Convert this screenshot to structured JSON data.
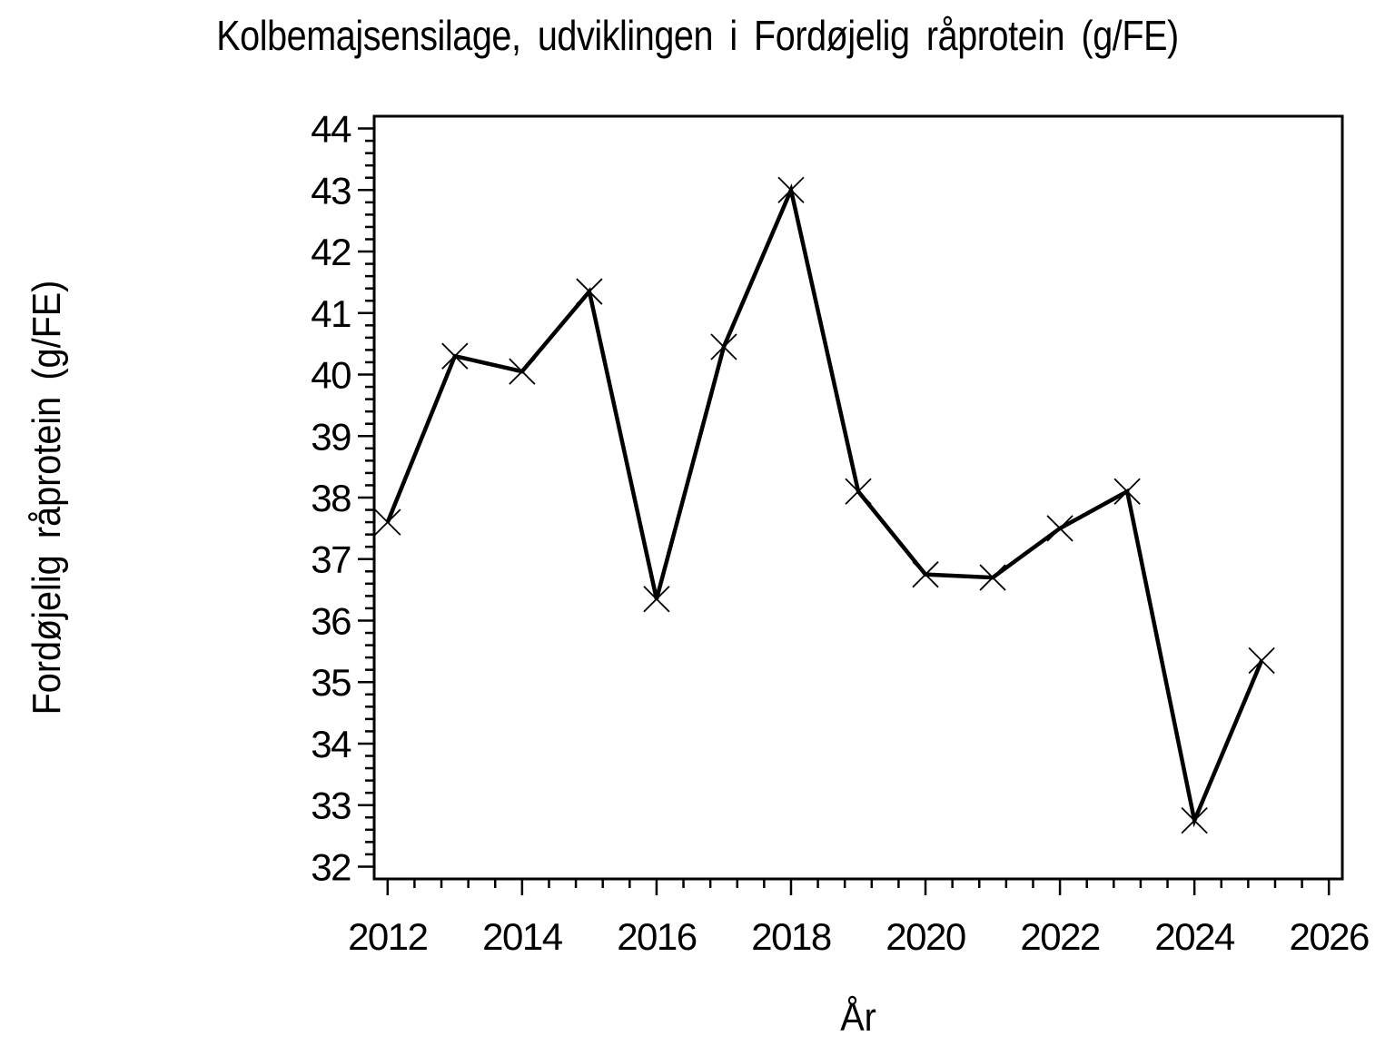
{
  "page": {
    "background": "#ffffff",
    "foreground": "#000000"
  },
  "chart_data": {
    "type": "line",
    "title": "Kolbemajsensilage, udviklingen i Fordøjelig råprotein (g/FE)",
    "xlabel": "År",
    "ylabel": "Fordøjelig råprotein (g/FE)",
    "x": [
      2012,
      2013,
      2014,
      2015,
      2016,
      2017,
      2018,
      2019,
      2020,
      2021,
      2022,
      2023,
      2024,
      2025
    ],
    "values": [
      37.6,
      40.3,
      40.05,
      41.35,
      36.35,
      40.45,
      43.0,
      38.1,
      36.75,
      36.7,
      37.5,
      38.1,
      32.75,
      35.35
    ],
    "series_name": "Fordøjelig råprotein",
    "xlim": [
      2011.8,
      2026.2
    ],
    "ylim": [
      31.8,
      44.2
    ],
    "x_tick_labels": [
      "2012",
      "2014",
      "2016",
      "2018",
      "2020",
      "2022",
      "2024",
      "2026"
    ],
    "x_major_ticks": [
      2012,
      2014,
      2016,
      2018,
      2020,
      2022,
      2024,
      2026
    ],
    "x_minor_step": 0.4,
    "y_tick_labels": [
      "32",
      "33",
      "34",
      "35",
      "36",
      "37",
      "38",
      "39",
      "40",
      "41",
      "42",
      "43",
      "44"
    ],
    "y_major_ticks": [
      32,
      33,
      34,
      35,
      36,
      37,
      38,
      39,
      40,
      41,
      42,
      43,
      44
    ],
    "y_minor_step": 0.2,
    "marker": "x",
    "line_color": "#000000",
    "marker_color": "#000000",
    "frame_color": "#000000",
    "grid": false,
    "legend": null
  }
}
